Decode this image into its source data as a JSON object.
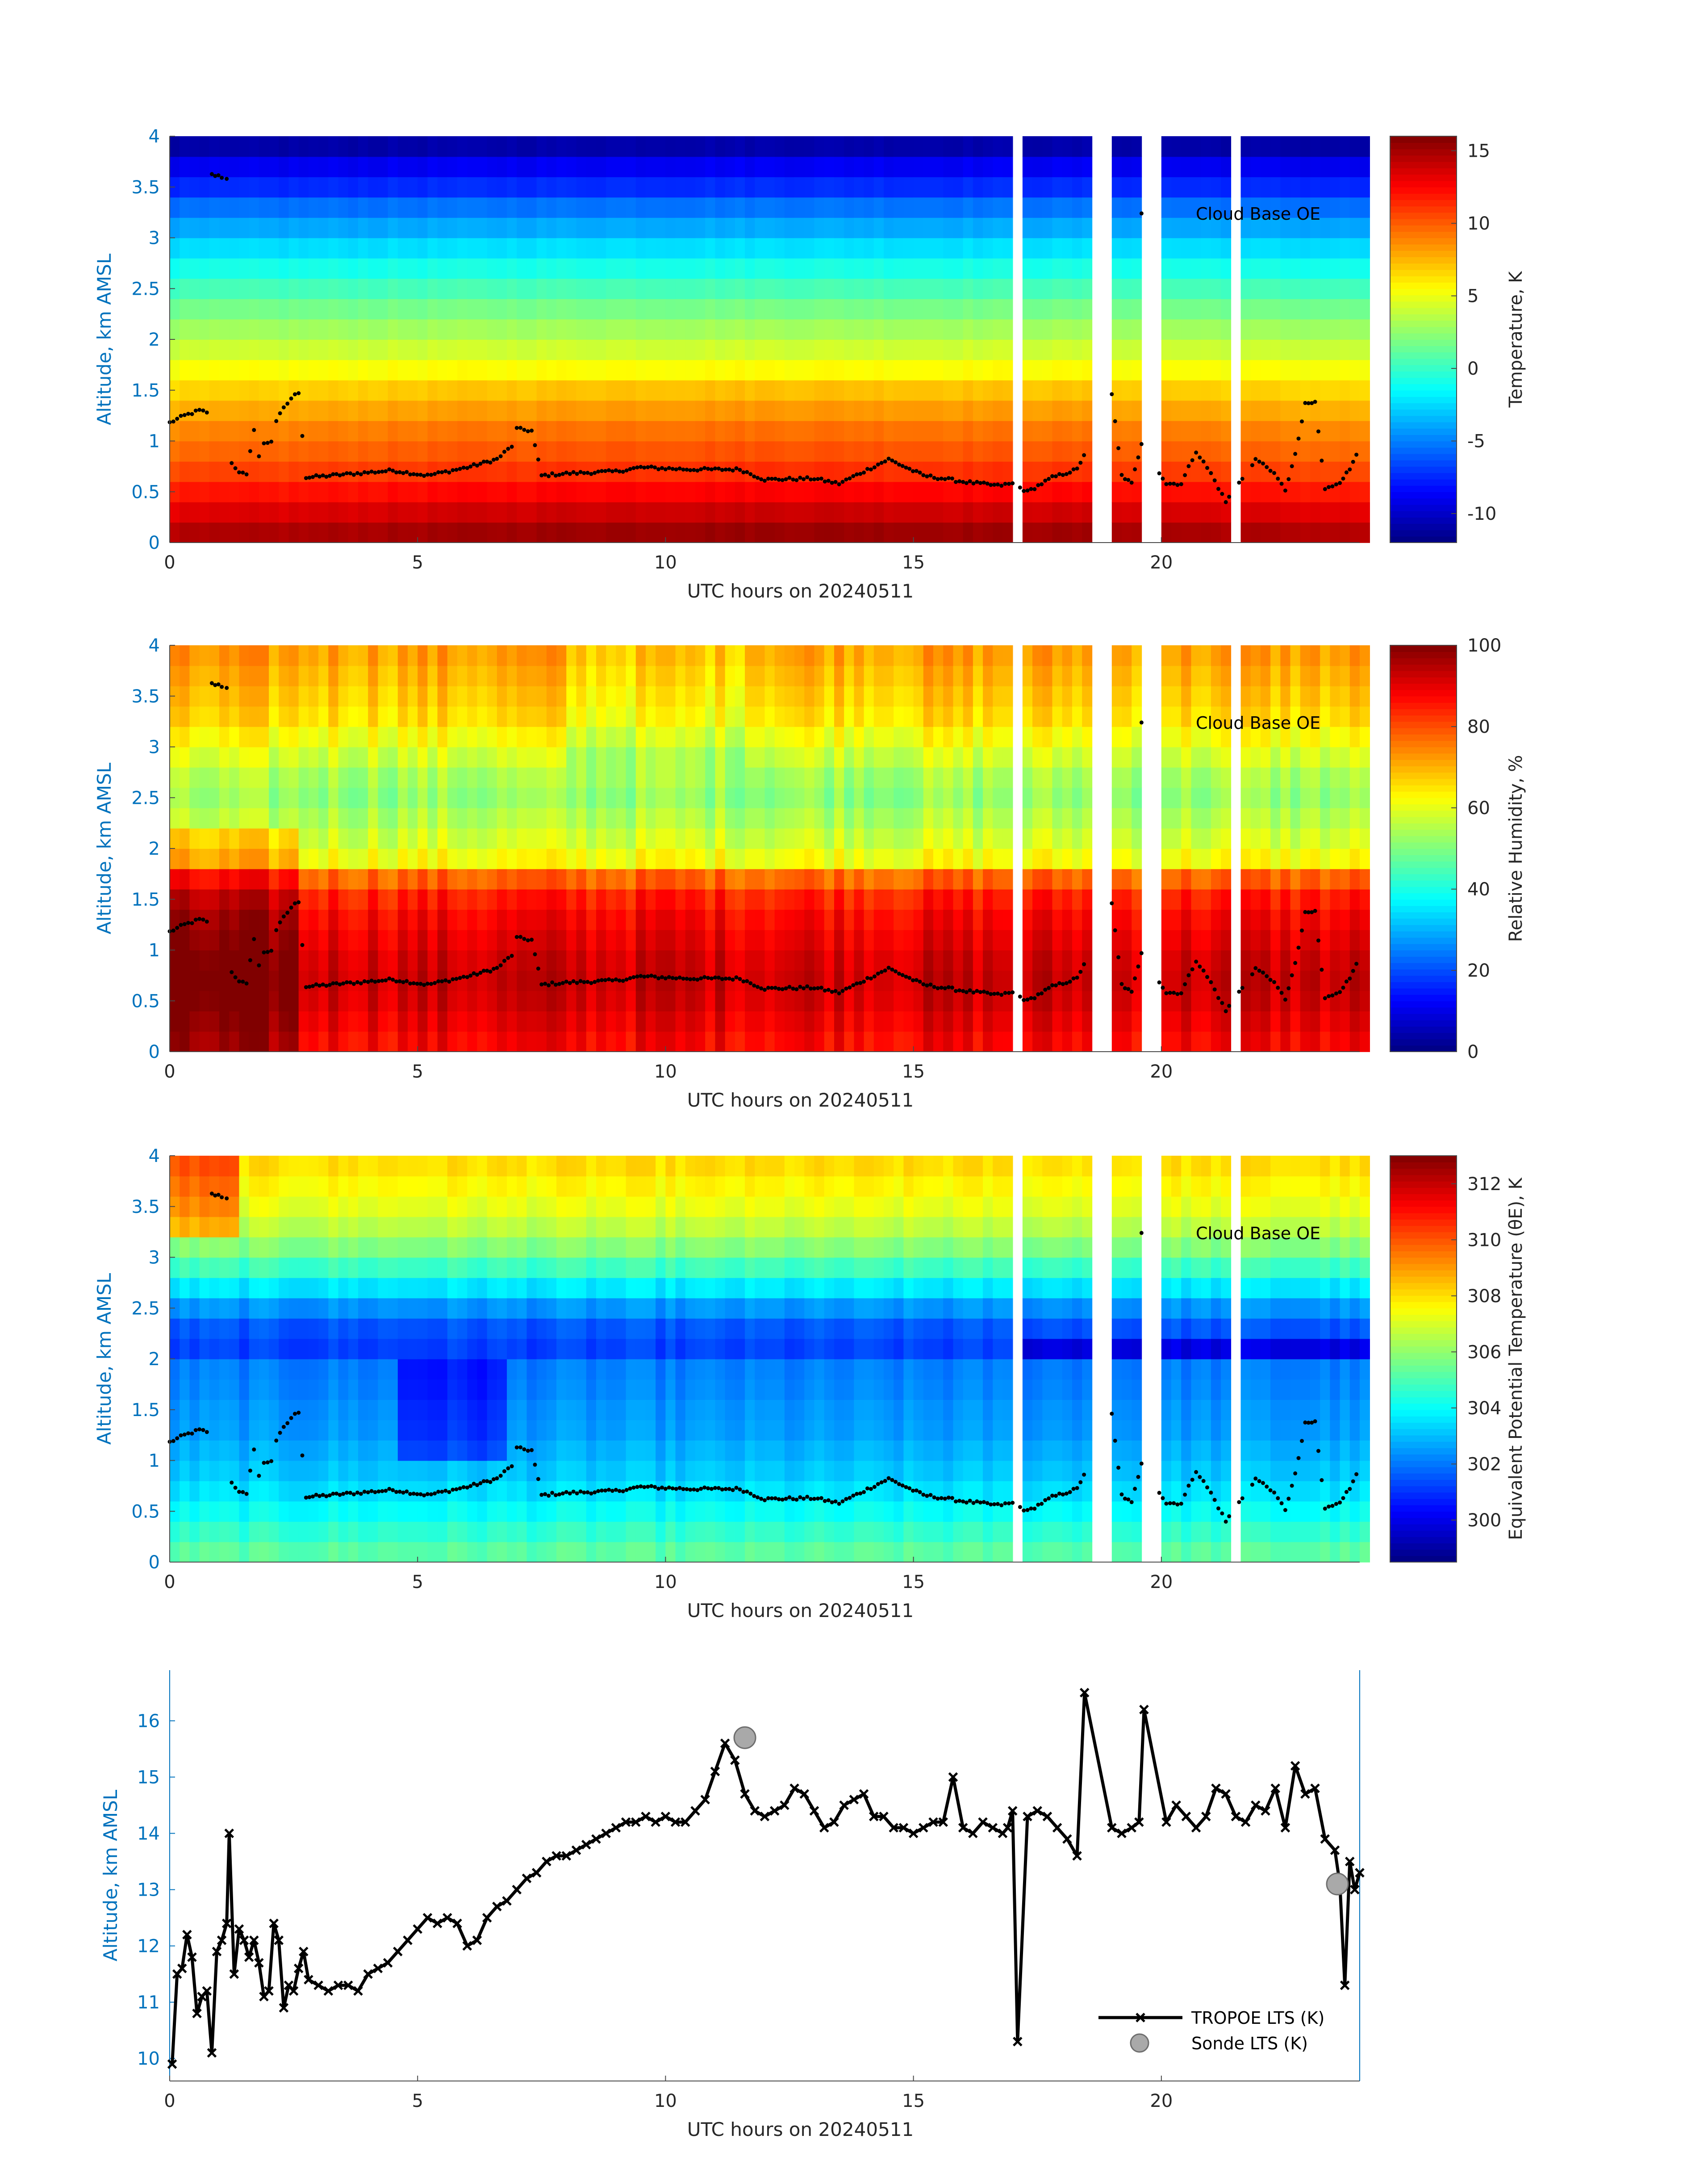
{
  "figure": {
    "date_label": "UTC hours on 20240511",
    "annotation": "Cloud Base OE",
    "accent_color": "#0072bd"
  },
  "chart_data": [
    {
      "type": "heatmap",
      "name": "temperature",
      "xlabel": "UTC hours on 20240511",
      "ylabel": "Altitude, km AMSL",
      "xlim": [
        0,
        24
      ],
      "ylim": [
        0,
        4
      ],
      "xticks": [
        0,
        5,
        10,
        15,
        20
      ],
      "yticks": [
        0,
        0.5,
        1,
        1.5,
        2,
        2.5,
        3,
        3.5,
        4
      ],
      "colorbar_label": "Temperature, K",
      "clim": [
        -12,
        16
      ],
      "colorbar_ticks": [
        -10,
        -5,
        0,
        5,
        10,
        15
      ],
      "annotation": "Cloud Base OE",
      "heights_km": [
        0.1,
        0.3,
        0.5,
        0.7,
        0.9,
        1.1,
        1.3,
        1.5,
        1.7,
        1.9,
        2.1,
        2.3,
        2.5,
        2.7,
        2.9,
        3.1,
        3.3,
        3.5,
        3.7,
        3.9
      ],
      "profile": [
        14.5,
        13.2,
        11.8,
        10.5,
        9.5,
        8.7,
        7.6,
        6.5,
        5.3,
        4.0,
        2.8,
        1.6,
        0.3,
        -1.0,
        -2.5,
        -4.0,
        -5.5,
        -7.5,
        -9.0,
        -11.0
      ]
    },
    {
      "type": "heatmap",
      "name": "relative-humidity",
      "xlabel": "UTC hours on 20240511",
      "ylabel": "Altitude, km AMSL",
      "xlim": [
        0,
        24
      ],
      "ylim": [
        0,
        4
      ],
      "xticks": [
        0,
        5,
        10,
        15,
        20
      ],
      "yticks": [
        0,
        0.5,
        1,
        1.5,
        2,
        2.5,
        3,
        3.5,
        4
      ],
      "colorbar_label": "Relative Humidity, %",
      "clim": [
        0,
        100
      ],
      "colorbar_ticks": [
        0,
        20,
        40,
        60,
        80,
        100
      ],
      "annotation": "Cloud Base OE",
      "heights_km": [
        0.1,
        0.3,
        0.5,
        0.7,
        0.9,
        1.1,
        1.3,
        1.5,
        1.7,
        1.9,
        2.1,
        2.3,
        2.5,
        2.7,
        2.9,
        3.1,
        3.3,
        3.5,
        3.7,
        3.9
      ],
      "profile": [
        88,
        90,
        92,
        93,
        92,
        90,
        88,
        85,
        78,
        62,
        58,
        55,
        52,
        54,
        58,
        62,
        66,
        68,
        70,
        72
      ]
    },
    {
      "type": "heatmap",
      "name": "equivalent-potential-temperature",
      "xlabel": "UTC hours on 20240511",
      "ylabel": "Altitude, km AMSL",
      "xlim": [
        0,
        24
      ],
      "ylim": [
        0,
        4
      ],
      "xticks": [
        0,
        5,
        10,
        15,
        20
      ],
      "yticks": [
        0,
        0.5,
        1,
        1.5,
        2,
        2.5,
        3,
        3.5,
        4
      ],
      "colorbar_label": "Equivalent Potential Temperature (θE), K",
      "clim": [
        298.5,
        313
      ],
      "colorbar_ticks": [
        300,
        302,
        304,
        306,
        308,
        310,
        312
      ],
      "annotation": "Cloud Base OE",
      "heights_km": [
        0.1,
        0.3,
        0.5,
        0.7,
        0.9,
        1.1,
        1.3,
        1.5,
        1.7,
        1.9,
        2.1,
        2.3,
        2.5,
        2.7,
        2.9,
        3.1,
        3.3,
        3.5,
        3.7,
        3.9
      ],
      "profile": [
        305.2,
        304.6,
        304.0,
        303.5,
        303.1,
        302.8,
        302.5,
        302.4,
        302.2,
        302.1,
        301.2,
        301.5,
        302.4,
        303.6,
        304.8,
        305.8,
        306.6,
        307.2,
        307.6,
        308.0
      ]
    },
    {
      "type": "line",
      "name": "lts",
      "xlabel": "UTC hours on 20240511",
      "ylabel": "Altitude, km AMSL",
      "xlim": [
        0,
        24
      ],
      "ylim": [
        9.6,
        16.9
      ],
      "xticks": [
        0,
        5,
        10,
        15,
        20
      ],
      "yticks": [
        10,
        11,
        12,
        13,
        14,
        15,
        16
      ],
      "legend": "bottom-right",
      "series": [
        {
          "name": "TROPOE LTS (K)",
          "marker": "x",
          "x": [
            0.05,
            0.15,
            0.25,
            0.35,
            0.45,
            0.55,
            0.65,
            0.75,
            0.85,
            0.95,
            1.05,
            1.15,
            1.2,
            1.3,
            1.4,
            1.5,
            1.6,
            1.7,
            1.8,
            1.9,
            2.0,
            2.1,
            2.2,
            2.3,
            2.4,
            2.5,
            2.6,
            2.7,
            2.8,
            3.0,
            3.2,
            3.4,
            3.6,
            3.8,
            4.0,
            4.2,
            4.4,
            4.6,
            4.8,
            5.0,
            5.2,
            5.4,
            5.6,
            5.8,
            6.0,
            6.2,
            6.4,
            6.6,
            6.8,
            7.0,
            7.2,
            7.4,
            7.6,
            7.8,
            8.0,
            8.2,
            8.4,
            8.6,
            8.8,
            9.0,
            9.2,
            9.4,
            9.6,
            9.8,
            10.0,
            10.2,
            10.4,
            10.6,
            10.8,
            11.0,
            11.2,
            11.4,
            11.6,
            11.8,
            12.0,
            12.2,
            12.4,
            12.6,
            12.8,
            13.0,
            13.2,
            13.4,
            13.6,
            13.8,
            14.0,
            14.2,
            14.4,
            14.6,
            14.8,
            15.0,
            15.2,
            15.4,
            15.6,
            15.8,
            16.0,
            16.2,
            16.4,
            16.6,
            16.8,
            16.9,
            17.0,
            17.1,
            17.3,
            17.5,
            17.7,
            17.9,
            18.1,
            18.3,
            18.45,
            19.0,
            19.2,
            19.4,
            19.55,
            19.65,
            20.1,
            20.3,
            20.5,
            20.7,
            20.9,
            21.1,
            21.3,
            21.5,
            21.7,
            21.9,
            22.1,
            22.3,
            22.5,
            22.7,
            22.9,
            23.1,
            23.3,
            23.5,
            23.6,
            23.7,
            23.8,
            23.9,
            24.0
          ],
          "y": [
            9.9,
            11.5,
            11.6,
            12.2,
            11.8,
            10.8,
            11.1,
            11.2,
            10.1,
            11.9,
            12.1,
            12.4,
            14.0,
            11.5,
            12.3,
            12.1,
            11.8,
            12.1,
            11.7,
            11.1,
            11.2,
            12.4,
            12.1,
            10.9,
            11.3,
            11.2,
            11.6,
            11.9,
            11.4,
            11.3,
            11.2,
            11.3,
            11.3,
            11.2,
            11.5,
            11.6,
            11.7,
            11.9,
            12.1,
            12.3,
            12.5,
            12.4,
            12.5,
            12.4,
            12.0,
            12.1,
            12.5,
            12.7,
            12.8,
            13.0,
            13.2,
            13.3,
            13.5,
            13.6,
            13.6,
            13.7,
            13.8,
            13.9,
            14.0,
            14.1,
            14.2,
            14.2,
            14.3,
            14.2,
            14.3,
            14.2,
            14.2,
            14.4,
            14.6,
            15.1,
            15.6,
            15.3,
            14.7,
            14.4,
            14.3,
            14.4,
            14.5,
            14.8,
            14.7,
            14.4,
            14.1,
            14.2,
            14.5,
            14.6,
            14.7,
            14.3,
            14.3,
            14.1,
            14.1,
            14.0,
            14.1,
            14.2,
            14.2,
            15.0,
            14.1,
            14.0,
            14.2,
            14.1,
            14.0,
            14.1,
            14.4,
            10.3,
            14.3,
            14.4,
            14.3,
            14.1,
            13.9,
            13.6,
            16.5,
            14.1,
            14.0,
            14.1,
            14.2,
            16.2,
            14.2,
            14.5,
            14.3,
            14.1,
            14.3,
            14.8,
            14.7,
            14.3,
            14.2,
            14.5,
            14.4,
            14.8,
            14.1,
            15.2,
            14.7,
            14.8,
            13.9,
            13.7,
            13.1,
            11.3,
            13.5,
            13.0,
            13.3
          ]
        },
        {
          "name": "Sonde LTS (K)",
          "marker": "circle",
          "x": [
            11.6,
            23.55
          ],
          "y": [
            15.7,
            13.1
          ]
        }
      ]
    }
  ]
}
